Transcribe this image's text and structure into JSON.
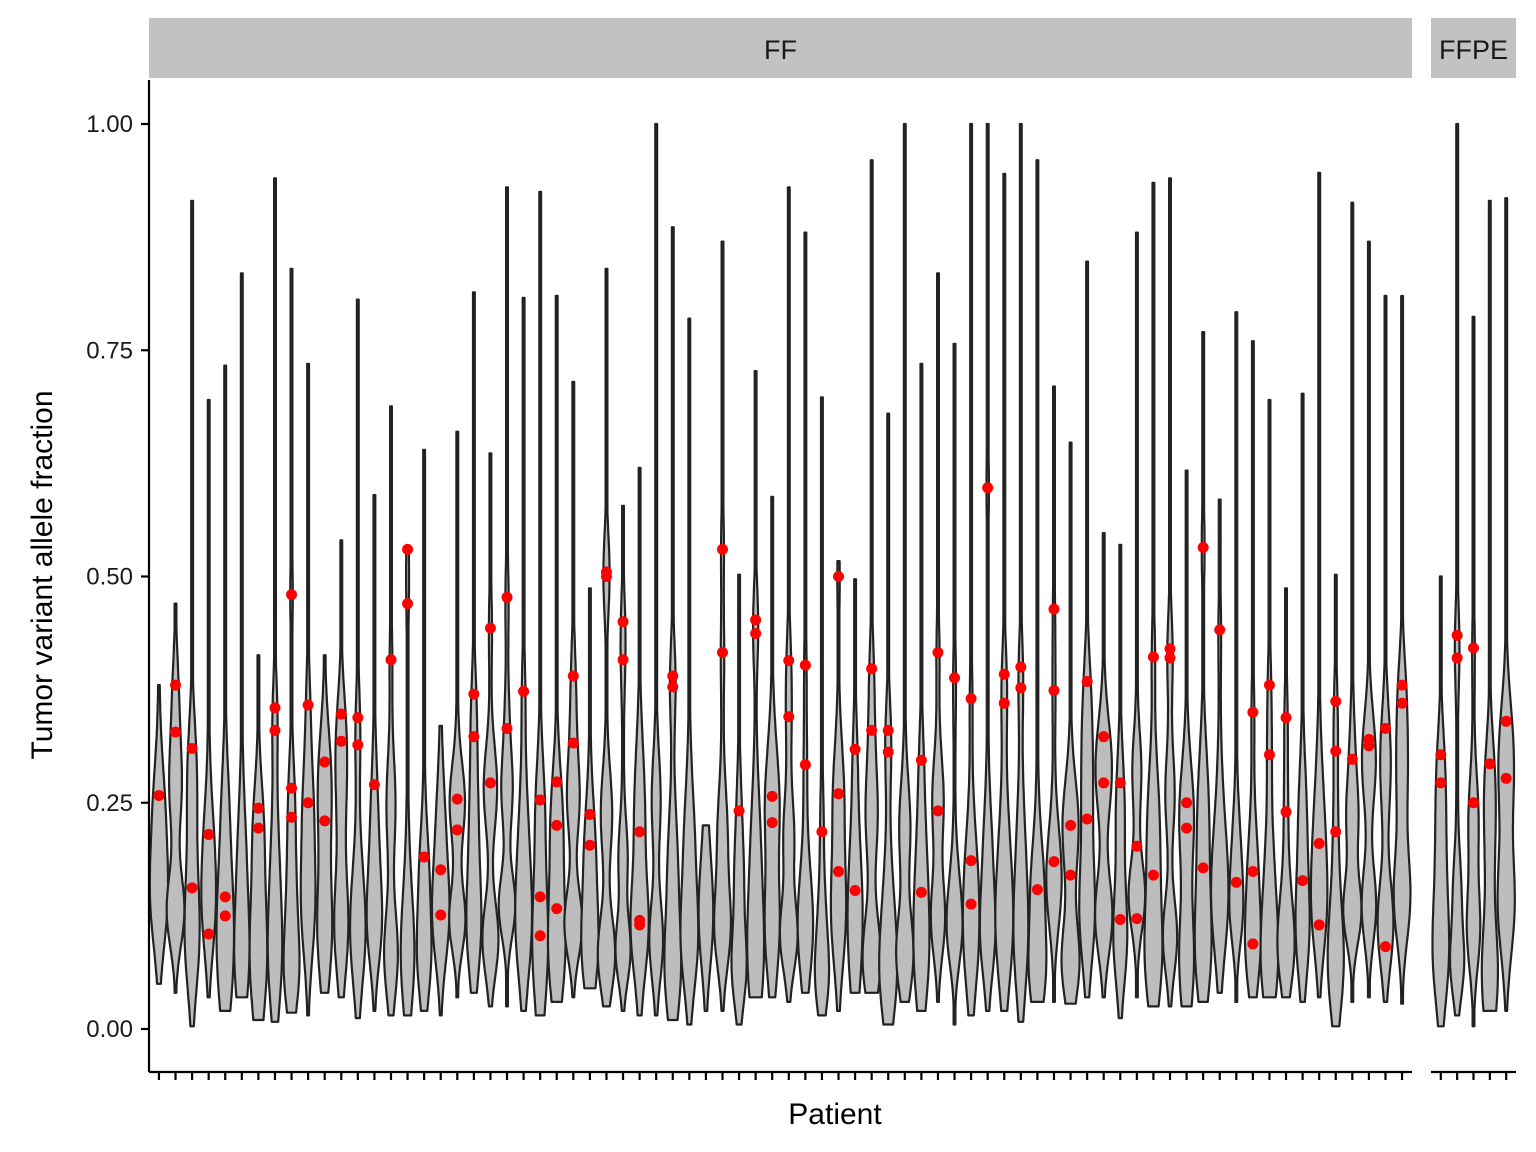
{
  "chart_data": {
    "type": "violin",
    "xlabel": "Patient",
    "ylabel": "Tumor variant allele fraction",
    "ylim": [
      -0.047,
      1.05
    ],
    "yticks": [
      0.0,
      0.25,
      0.5,
      0.75,
      1.0
    ],
    "ytick_labels": [
      "0.00",
      "0.25",
      "0.50",
      "0.75",
      "1.00"
    ],
    "grid": false,
    "colors": {
      "violin_fill": "#bdbdbd",
      "violin_stroke": "#222222",
      "point": "#ff0000",
      "strip": "#c2c2c2"
    },
    "panels": [
      {
        "label": "FF",
        "patients": [
          {
            "min": 0.05,
            "max": 0.38,
            "points": [
              0.258
            ]
          },
          {
            "min": 0.04,
            "max": 0.47,
            "points": [
              0.38,
              0.328
            ]
          },
          {
            "min": 0.003,
            "max": 0.915,
            "points": [
              0.31,
              0.156
            ]
          },
          {
            "min": 0.035,
            "max": 0.695,
            "points": [
              0.215,
              0.105
            ]
          },
          {
            "min": 0.02,
            "max": 0.733,
            "points": [
              0.146,
              0.125
            ]
          },
          {
            "min": 0.035,
            "max": 0.835,
            "points": []
          },
          {
            "min": 0.01,
            "max": 0.413,
            "points": [
              0.244,
              0.222
            ]
          },
          {
            "min": 0.008,
            "max": 0.94,
            "points": [
              0.355,
              0.33
            ]
          },
          {
            "min": 0.018,
            "max": 0.84,
            "points": [
              0.48,
              0.266,
              0.234
            ]
          },
          {
            "min": 0.015,
            "max": 0.735,
            "points": [
              0.358,
              0.25
            ]
          },
          {
            "min": 0.04,
            "max": 0.413,
            "points": [
              0.295,
              0.23
            ]
          },
          {
            "min": 0.035,
            "max": 0.54,
            "points": [
              0.348,
              0.318
            ]
          },
          {
            "min": 0.012,
            "max": 0.806,
            "points": [
              0.344,
              0.314
            ]
          },
          {
            "min": 0.02,
            "max": 0.59,
            "points": [
              0.27
            ]
          },
          {
            "min": 0.015,
            "max": 0.688,
            "points": [
              0.408
            ]
          },
          {
            "min": 0.015,
            "max": 0.53,
            "points": [
              0.53,
              0.47
            ]
          },
          {
            "min": 0.02,
            "max": 0.64,
            "points": [
              0.19
            ]
          },
          {
            "min": 0.015,
            "max": 0.335,
            "points": [
              0.176,
              0.126
            ]
          },
          {
            "min": 0.035,
            "max": 0.66,
            "points": [
              0.254,
              0.22
            ]
          },
          {
            "min": 0.04,
            "max": 0.814,
            "points": [
              0.37,
              0.323
            ]
          },
          {
            "min": 0.025,
            "max": 0.636,
            "points": [
              0.443,
              0.272
            ]
          },
          {
            "min": 0.025,
            "max": 0.93,
            "points": [
              0.477,
              0.332
            ]
          },
          {
            "min": 0.02,
            "max": 0.808,
            "points": [
              0.373
            ]
          },
          {
            "min": 0.015,
            "max": 0.925,
            "points": [
              0.253,
              0.146,
              0.103
            ]
          },
          {
            "min": 0.03,
            "max": 0.81,
            "points": [
              0.273,
              0.225,
              0.133
            ]
          },
          {
            "min": 0.035,
            "max": 0.715,
            "points": [
              0.39,
              0.316
            ]
          },
          {
            "min": 0.045,
            "max": 0.487,
            "points": [
              0.237,
              0.203
            ]
          },
          {
            "min": 0.025,
            "max": 0.84,
            "points": [
              0.505,
              0.5
            ]
          },
          {
            "min": 0.02,
            "max": 0.578,
            "points": [
              0.45,
              0.408
            ]
          },
          {
            "min": 0.015,
            "max": 0.62,
            "points": [
              0.218,
              0.12,
              0.115
            ]
          },
          {
            "min": 0.015,
            "max": 1.0,
            "points": []
          },
          {
            "min": 0.01,
            "max": 0.886,
            "points": [
              0.39,
              0.378
            ]
          },
          {
            "min": 0.005,
            "max": 0.785,
            "points": []
          },
          {
            "min": 0.02,
            "max": 0.225,
            "points": []
          },
          {
            "min": 0.02,
            "max": 0.87,
            "points": [
              0.53,
              0.416
            ]
          },
          {
            "min": 0.005,
            "max": 0.502,
            "points": [
              0.241
            ]
          },
          {
            "min": 0.035,
            "max": 0.727,
            "points": [
              0.452,
              0.437
            ]
          },
          {
            "min": 0.035,
            "max": 0.588,
            "points": [
              0.257,
              0.228
            ]
          },
          {
            "min": 0.03,
            "max": 0.93,
            "points": [
              0.407,
              0.345
            ]
          },
          {
            "min": 0.04,
            "max": 0.88,
            "points": [
              0.402,
              0.292
            ]
          },
          {
            "min": 0.015,
            "max": 0.698,
            "points": [
              0.218
            ]
          },
          {
            "min": 0.02,
            "max": 0.517,
            "points": [
              0.5,
              0.26,
              0.174
            ]
          },
          {
            "min": 0.04,
            "max": 0.497,
            "points": [
              0.309,
              0.153
            ]
          },
          {
            "min": 0.04,
            "max": 0.96,
            "points": [
              0.398,
              0.33
            ]
          },
          {
            "min": 0.005,
            "max": 0.68,
            "points": [
              0.33,
              0.306
            ]
          },
          {
            "min": 0.03,
            "max": 1.0,
            "points": []
          },
          {
            "min": 0.02,
            "max": 0.735,
            "points": [
              0.297,
              0.151
            ]
          },
          {
            "min": 0.03,
            "max": 0.835,
            "points": [
              0.416,
              0.241
            ]
          },
          {
            "min": 0.005,
            "max": 0.757,
            "points": [
              0.388
            ]
          },
          {
            "min": 0.015,
            "max": 1.0,
            "points": [
              0.365,
              0.186,
              0.138
            ]
          },
          {
            "min": 0.02,
            "max": 1.0,
            "points": [
              0.598
            ]
          },
          {
            "min": 0.02,
            "max": 0.945,
            "points": [
              0.392,
              0.36
            ]
          },
          {
            "min": 0.008,
            "max": 1.0,
            "points": [
              0.4,
              0.377
            ]
          },
          {
            "min": 0.03,
            "max": 0.96,
            "points": [
              0.154
            ]
          },
          {
            "min": 0.03,
            "max": 0.71,
            "points": [
              0.464,
              0.374,
              0.185
            ]
          },
          {
            "min": 0.028,
            "max": 0.648,
            "points": [
              0.225,
              0.17
            ]
          },
          {
            "min": 0.035,
            "max": 0.848,
            "points": [
              0.384,
              0.232
            ]
          },
          {
            "min": 0.035,
            "max": 0.548,
            "points": [
              0.323,
              0.272
            ]
          },
          {
            "min": 0.012,
            "max": 0.535,
            "points": [
              0.272,
              0.121
            ]
          },
          {
            "min": 0.035,
            "max": 0.88,
            "points": [
              0.202,
              0.122
            ]
          },
          {
            "min": 0.025,
            "max": 0.935,
            "points": [
              0.411,
              0.17
            ]
          },
          {
            "min": 0.025,
            "max": 0.94,
            "points": [
              0.42,
              0.41
            ]
          },
          {
            "min": 0.025,
            "max": 0.617,
            "points": [
              0.25,
              0.222
            ]
          },
          {
            "min": 0.03,
            "max": 0.77,
            "points": [
              0.532,
              0.178
            ]
          },
          {
            "min": 0.04,
            "max": 0.585,
            "points": [
              0.441
            ]
          },
          {
            "min": 0.03,
            "max": 0.792,
            "points": [
              0.162
            ]
          },
          {
            "min": 0.035,
            "max": 0.76,
            "points": [
              0.35,
              0.174,
              0.094
            ]
          },
          {
            "min": 0.035,
            "max": 0.695,
            "points": [
              0.38,
              0.303
            ]
          },
          {
            "min": 0.035,
            "max": 0.487,
            "points": [
              0.344,
              0.24
            ]
          },
          {
            "min": 0.03,
            "max": 0.702,
            "points": [
              0.164
            ]
          },
          {
            "min": 0.035,
            "max": 0.946,
            "points": [
              0.205,
              0.115
            ]
          },
          {
            "min": 0.003,
            "max": 0.502,
            "points": [
              0.362,
              0.307,
              0.218
            ]
          },
          {
            "min": 0.03,
            "max": 0.913,
            "points": [
              0.298
            ]
          },
          {
            "min": 0.035,
            "max": 0.87,
            "points": [
              0.32,
              0.313
            ]
          },
          {
            "min": 0.03,
            "max": 0.81,
            "points": [
              0.332,
              0.091
            ]
          },
          {
            "min": 0.028,
            "max": 0.81,
            "points": [
              0.38,
              0.36
            ]
          }
        ]
      },
      {
        "label": "FFPE",
        "patients": [
          {
            "min": 0.003,
            "max": 0.5,
            "points": [
              0.303,
              0.272
            ]
          },
          {
            "min": 0.015,
            "max": 1.0,
            "points": [
              0.435,
              0.41
            ]
          },
          {
            "min": 0.003,
            "max": 0.787,
            "points": [
              0.421,
              0.25
            ]
          },
          {
            "min": 0.02,
            "max": 0.915,
            "points": [
              0.293
            ]
          },
          {
            "min": 0.02,
            "max": 0.918,
            "points": [
              0.34,
              0.277
            ]
          }
        ]
      }
    ]
  }
}
